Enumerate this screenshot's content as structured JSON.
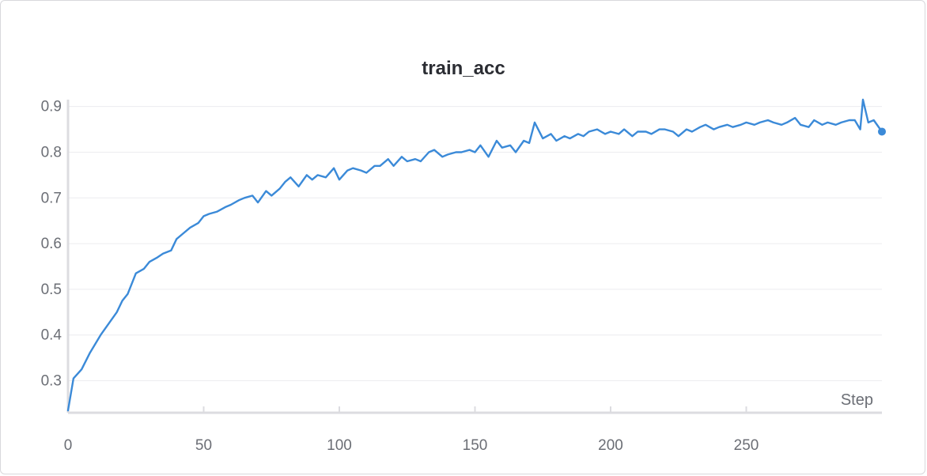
{
  "chart_data": {
    "type": "line",
    "title": "train_acc",
    "xlabel": "Step",
    "ylabel": "",
    "xlim": [
      0,
      300
    ],
    "ylim": [
      0.23,
      0.915
    ],
    "x_ticks": [
      0,
      50,
      100,
      150,
      200,
      250
    ],
    "y_ticks": [
      0.3,
      0.4,
      0.5,
      0.6,
      0.7,
      0.8,
      0.9
    ],
    "grid": true,
    "series": [
      {
        "name": "train_acc",
        "color": "#3b8ad8",
        "x": [
          0,
          2,
          5,
          8,
          10,
          12,
          15,
          18,
          20,
          22,
          25,
          28,
          30,
          33,
          35,
          38,
          40,
          42,
          45,
          48,
          50,
          52,
          55,
          58,
          60,
          63,
          65,
          68,
          70,
          73,
          75,
          78,
          80,
          82,
          85,
          88,
          90,
          92,
          95,
          98,
          100,
          103,
          105,
          108,
          110,
          113,
          115,
          118,
          120,
          123,
          125,
          128,
          130,
          133,
          135,
          138,
          140,
          143,
          145,
          148,
          150,
          152,
          155,
          158,
          160,
          163,
          165,
          168,
          170,
          172,
          175,
          178,
          180,
          183,
          185,
          188,
          190,
          192,
          195,
          198,
          200,
          203,
          205,
          208,
          210,
          213,
          215,
          218,
          220,
          223,
          225,
          228,
          230,
          233,
          235,
          238,
          240,
          243,
          245,
          248,
          250,
          253,
          255,
          258,
          260,
          263,
          265,
          268,
          270,
          273,
          275,
          278,
          280,
          283,
          285,
          288,
          290,
          292,
          293,
          295,
          297,
          300
        ],
        "values": [
          0.235,
          0.305,
          0.325,
          0.36,
          0.38,
          0.4,
          0.425,
          0.45,
          0.475,
          0.49,
          0.535,
          0.545,
          0.56,
          0.57,
          0.578,
          0.585,
          0.61,
          0.62,
          0.635,
          0.645,
          0.66,
          0.665,
          0.67,
          0.68,
          0.685,
          0.695,
          0.7,
          0.705,
          0.69,
          0.715,
          0.705,
          0.72,
          0.735,
          0.745,
          0.725,
          0.75,
          0.74,
          0.75,
          0.745,
          0.765,
          0.74,
          0.76,
          0.765,
          0.76,
          0.755,
          0.77,
          0.77,
          0.785,
          0.77,
          0.79,
          0.78,
          0.785,
          0.78,
          0.8,
          0.805,
          0.79,
          0.795,
          0.8,
          0.8,
          0.805,
          0.8,
          0.815,
          0.79,
          0.825,
          0.81,
          0.815,
          0.8,
          0.825,
          0.82,
          0.865,
          0.83,
          0.84,
          0.825,
          0.835,
          0.83,
          0.84,
          0.835,
          0.845,
          0.85,
          0.84,
          0.845,
          0.84,
          0.85,
          0.835,
          0.845,
          0.845,
          0.84,
          0.85,
          0.85,
          0.845,
          0.835,
          0.85,
          0.845,
          0.855,
          0.86,
          0.85,
          0.855,
          0.86,
          0.855,
          0.86,
          0.865,
          0.86,
          0.865,
          0.87,
          0.865,
          0.86,
          0.865,
          0.875,
          0.86,
          0.855,
          0.87,
          0.86,
          0.865,
          0.86,
          0.865,
          0.87,
          0.87,
          0.85,
          0.915,
          0.865,
          0.87,
          0.845
        ]
      }
    ]
  }
}
